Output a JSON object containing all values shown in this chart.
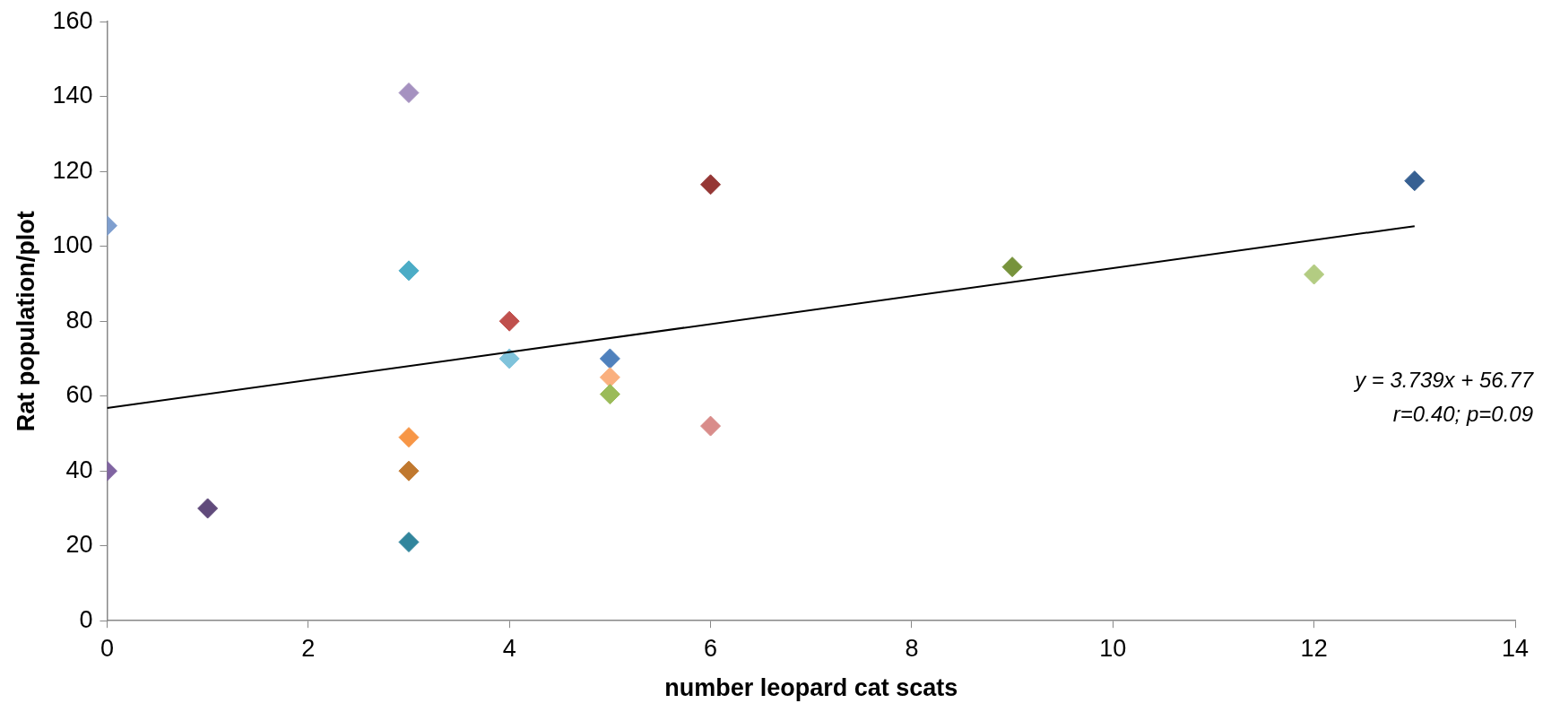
{
  "chart_data": {
    "type": "scatter",
    "xlabel": "number leopard cat scats",
    "ylabel": "Rat population/plot",
    "xlim": [
      0,
      14
    ],
    "xticks": [
      0,
      2,
      4,
      6,
      8,
      10,
      12,
      14
    ],
    "ylim": [
      0,
      160
    ],
    "yticks": [
      0,
      20,
      40,
      60,
      80,
      100,
      120,
      140,
      160
    ],
    "grid": false,
    "legend": false,
    "annotations": [
      "y = 3.739x + 56.77",
      "r=0.40; p=0.09"
    ],
    "series": [
      {
        "type": "scatter",
        "marker": "diamond",
        "x": [
          0,
          0,
          1,
          3,
          3,
          3,
          3,
          3,
          4,
          4,
          5,
          5,
          5,
          6,
          6,
          9,
          12,
          13
        ],
        "values": [
          105.5,
          40,
          30,
          141,
          93.5,
          49,
          40,
          21,
          80,
          70,
          70,
          65,
          60.5,
          116.5,
          52,
          94.5,
          92.5,
          117.5
        ],
        "colors": [
          "#7f9fcf",
          "#8064a2",
          "#604a7b",
          "#a591c0",
          "#4bacc6",
          "#f79646",
          "#c0782e",
          "#31859c",
          "#c0504d",
          "#7fc3db",
          "#4f81bd",
          "#fab07f",
          "#9bbb59",
          "#953735",
          "#d98c8a",
          "#77933c",
          "#b3cc82",
          "#376092"
        ]
      },
      {
        "type": "line",
        "marker": "none",
        "x": [
          0,
          13
        ],
        "values": [
          56.8,
          105.4
        ],
        "color": "#000000"
      }
    ]
  }
}
